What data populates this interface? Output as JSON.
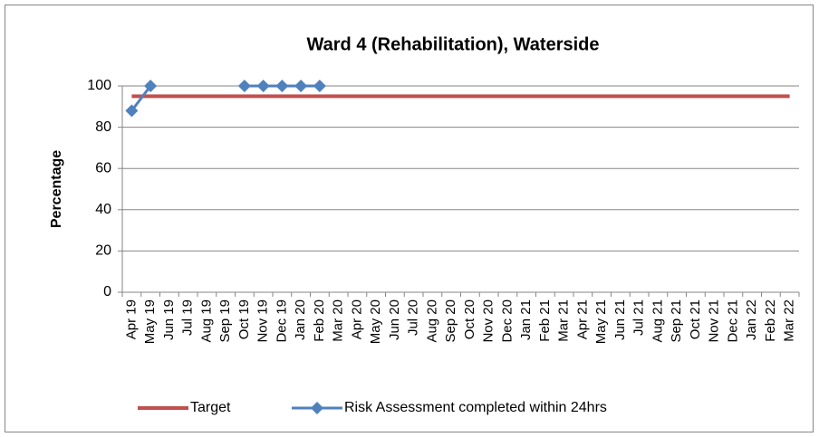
{
  "chart_data": {
    "type": "line",
    "title": "Ward 4 (Rehabilitation), Waterside",
    "ylabel": "Percentage",
    "categories": [
      "Apr 19",
      "May 19",
      "Jun 19",
      "Jul 19",
      "Aug 19",
      "Sep 19",
      "Oct 19",
      "Nov 19",
      "Dec 19",
      "Jan 20",
      "Feb 20",
      "Mar 20",
      "Apr 20",
      "May 20",
      "Jun 20",
      "Jul 20",
      "Aug 20",
      "Sep 20",
      "Oct 20",
      "Nov 20",
      "Dec 20",
      "Jan 21",
      "Feb 21",
      "Mar 21",
      "Apr 21",
      "May 21",
      "Jun 21",
      "Jul 21",
      "Aug 21",
      "Sep 21",
      "Oct 21",
      "Nov 21",
      "Dec 21",
      "Jan 22",
      "Feb 22",
      "Mar 22"
    ],
    "series": [
      {
        "name": "Target",
        "color": "#c0504d",
        "values": [
          95,
          95,
          95,
          95,
          95,
          95,
          95,
          95,
          95,
          95,
          95,
          95,
          95,
          95,
          95,
          95,
          95,
          95,
          95,
          95,
          95,
          95,
          95,
          95,
          95,
          95,
          95,
          95,
          95,
          95,
          95,
          95,
          95,
          95,
          95,
          95
        ]
      },
      {
        "name": "Risk Assessment completed within 24hrs",
        "color": "#4f81bd",
        "marker": "diamond",
        "values": [
          88,
          100,
          null,
          null,
          null,
          null,
          100,
          100,
          100,
          100,
          100,
          null,
          null,
          null,
          null,
          null,
          null,
          null,
          null,
          null,
          null,
          null,
          null,
          null,
          null,
          null,
          null,
          null,
          null,
          null,
          null,
          null,
          null,
          null,
          null,
          null
        ]
      }
    ],
    "ylim": [
      0,
      100
    ],
    "yticks": [
      0,
      20,
      40,
      60,
      80,
      100
    ],
    "grid": true,
    "legend": "bottom"
  }
}
